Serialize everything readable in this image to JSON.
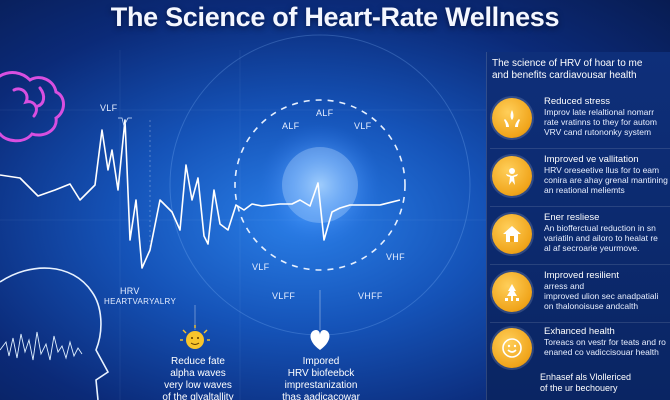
{
  "title": "The Science of Heart-Rate Wellness",
  "panel": {
    "heading_line1": "The  science of HRV  of hoar to me",
    "heading_line2": "and benefits cardiavousar health",
    "items": [
      {
        "title": "Reduced stress",
        "desc": "Improv late relaltional nomarr\nrate vratinns to they for autom\nVRV cand rutononky system",
        "icon": "hands-icon"
      },
      {
        "title": "Improved ve vallitation",
        "desc": "HRV oreseetive llus for to eam\nconira are ahay grenal mantining\nan reational meliemts",
        "icon": "person-icon"
      },
      {
        "title": "Ener resliese",
        "desc": "An biofferctual reduction in sn\nvariatiln and ailoro to healat re\nal af secroarie yeurmove.",
        "icon": "home-icon"
      },
      {
        "title": "Improved resilient",
        "desc": "arress and\nimproved ulion sec anadpatiali\non thalonoisuse andcalth",
        "icon": "tree-icon"
      },
      {
        "title": "Exhanced health",
        "desc": "Toreacs on vestr for teats and ro\nenaned co vadiccisouar health",
        "icon": "smile-icon"
      }
    ],
    "footer": "Enhasef als Vlollericed\nof the ur bechouery"
  },
  "labels": {
    "vlf_top": "VLF",
    "alf": "ALF",
    "alf2": "ALF",
    "vlf_mid": "VLF",
    "vlf_left": "VLF",
    "vlff": "VLFF",
    "vhf": "VHF",
    "vhff": "VHFF",
    "hrv": "HRV",
    "heart_variabilty": "HEARTVARYALRY"
  },
  "captions": {
    "left": "Reduce fate\nalpha waves\nvery low waves\nof the glyaltallity",
    "center": "Impored\nHRV biofeebck\nimprestanization\nthas aadicacowar"
  },
  "colors": {
    "accent": "#f0a41a",
    "background": "#1553b8",
    "brain": "#d84fe0"
  }
}
